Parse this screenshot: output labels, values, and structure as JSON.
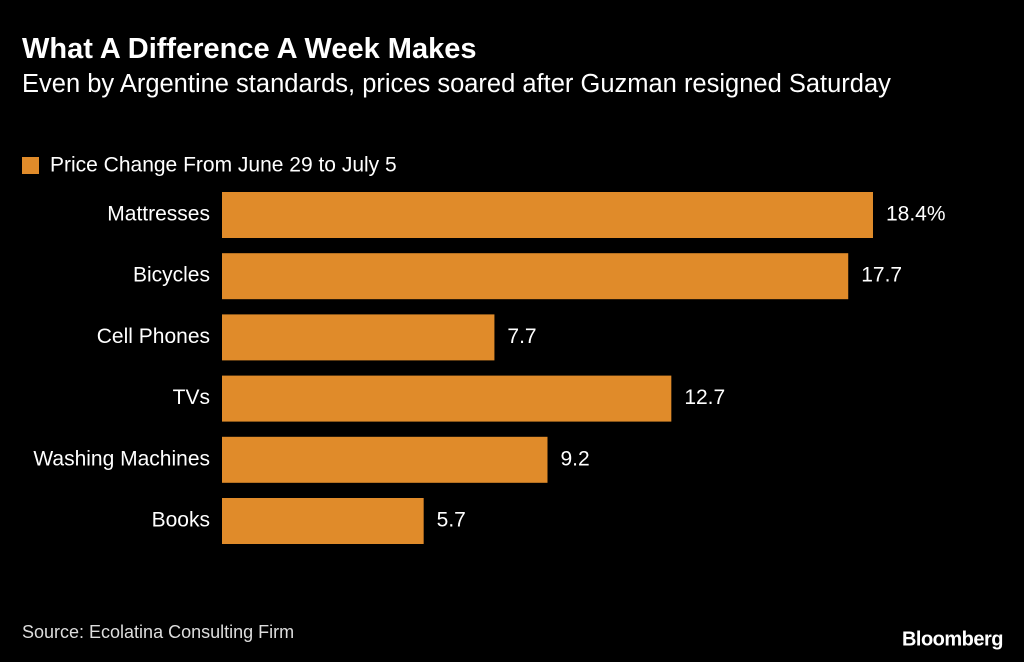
{
  "chart_data": {
    "type": "hbar",
    "title": "What A Difference A Week Makes",
    "subtitle": "Even by Argentine standards, prices soared after Guzman resigned Saturday",
    "categories": [
      "Mattresses",
      "Bicycles",
      "Cell Phones",
      "TVs",
      "Washing Machines",
      "Books"
    ],
    "series": [
      {
        "name": "Price Change From June 29 to July 5",
        "color": "#e08b2a",
        "values": [
          18.4,
          17.7,
          7.7,
          12.7,
          9.2,
          5.7
        ],
        "value_labels": [
          "18.4%",
          "17.7",
          "7.7",
          "12.7",
          "9.2",
          "5.7"
        ]
      }
    ],
    "source": "Source: Ecolatina Consulting Firm",
    "brand": "Bloomberg"
  }
}
